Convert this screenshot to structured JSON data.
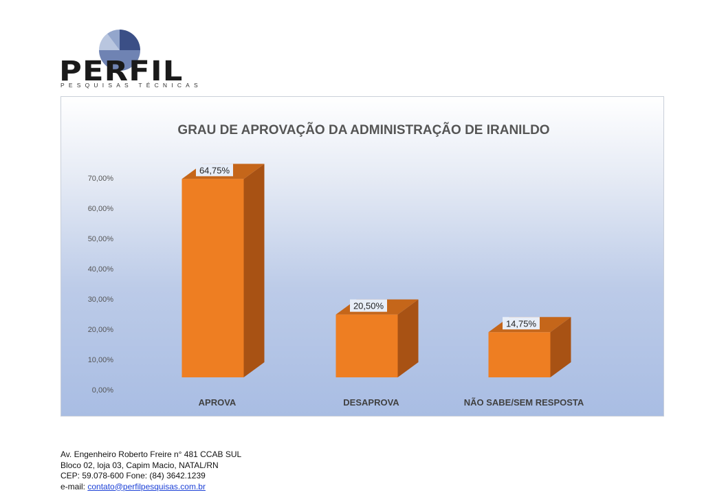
{
  "logo": {
    "name": "PERFIL",
    "tagline": "PESQUISAS TÉCNICAS",
    "colors": {
      "dark": "#3b4f86",
      "mid": "#6f83b3",
      "light": "#b9c6df"
    }
  },
  "chart_data": {
    "type": "bar",
    "style": "3d",
    "title": "GRAU DE APROVAÇÃO DA ADMINISTRAÇÃO DE IRANILDO",
    "categories": [
      "APROVA",
      "DESAPROVA",
      "NÃO SABE/SEM RESPOSTA"
    ],
    "values": [
      64.75,
      20.5,
      14.75
    ],
    "data_labels": [
      "64,75%",
      "20,50%",
      "14,75%"
    ],
    "yticks": [
      "0,00%",
      "10,00%",
      "20,00%",
      "30,00%",
      "40,00%",
      "50,00%",
      "60,00%",
      "70,00%"
    ],
    "ylim": [
      0,
      70
    ],
    "xlabel": "",
    "ylabel": "",
    "grid": false,
    "bar_color": "#ee7e22",
    "bar_side_color": "#a85214",
    "bar_top_color": "#c5661a"
  },
  "footer": {
    "line1": "Av. Engenheiro Roberto Freire n° 481 CCAB SUL",
    "line2": "Bloco 02, loja 03, Capim Macio, NATAL/RN",
    "line3": "CEP: 59.078-600 Fone: (84) 3642.1239",
    "email_prefix": "e-mail: ",
    "email": "contato@perfilpesquisas.com.br"
  }
}
